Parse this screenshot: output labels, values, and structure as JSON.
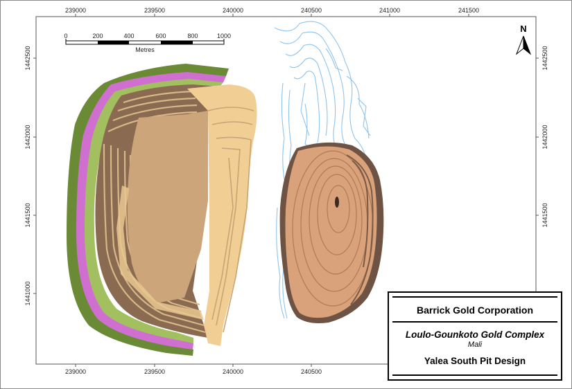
{
  "map": {
    "easting_ticks": [
      "239000",
      "239500",
      "240000",
      "240500",
      "241000",
      "241500"
    ],
    "northing_ticks": [
      "1442500",
      "1442000",
      "1441500",
      "1441000"
    ],
    "north_label": "N",
    "scale_bar": {
      "labels": [
        "0",
        "200",
        "400",
        "600",
        "800",
        "1000"
      ],
      "unit": "Metres"
    }
  },
  "title_block": {
    "company": "Barrick Gold Corporation",
    "project": "Loulo-Gounkoto Gold Complex",
    "country": "Mali",
    "drawing": "Yalea South Pit Design"
  },
  "colors": {
    "pit_floor": "#cda57a",
    "bench_light": "#f1cf94",
    "bench_dark": "#7a5a44",
    "magenta_band": "#cf6fd0",
    "green_band": "#6b8a35",
    "secondary_pit": "#d9a27a",
    "waste_dump_lines": "#8ec4ec"
  }
}
